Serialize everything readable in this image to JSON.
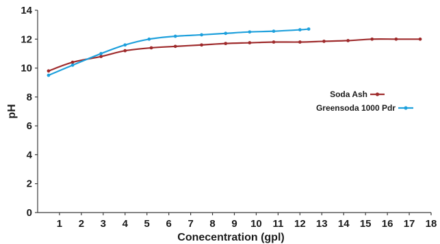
{
  "chart_data": {
    "type": "line",
    "xlabel": "Conecentration (gpl)",
    "ylabel": "pH",
    "xlim": [
      0,
      18
    ],
    "ylim": [
      0,
      14
    ],
    "x_ticks": [
      1,
      2,
      3,
      4,
      5,
      6,
      7,
      8,
      9,
      10,
      11,
      12,
      13,
      14,
      15,
      16,
      17,
      18
    ],
    "y_ticks": [
      0,
      2,
      4,
      6,
      8,
      10,
      12,
      14
    ],
    "grid": false,
    "legend_position": "right",
    "series": [
      {
        "name": "Soda Ash",
        "color": "#9e2a2b",
        "x": [
          0.5,
          1.6,
          2.9,
          4.0,
          5.2,
          6.3,
          7.5,
          8.6,
          9.7,
          10.8,
          12.0,
          13.1,
          14.2,
          15.3,
          16.4,
          17.5
        ],
        "y": [
          9.8,
          10.4,
          10.8,
          11.2,
          11.4,
          11.5,
          11.6,
          11.7,
          11.75,
          11.8,
          11.8,
          11.85,
          11.9,
          12.0,
          12.0,
          12.0
        ]
      },
      {
        "name": "Greensoda 1000 Pdr",
        "color": "#1ea0dc",
        "x": [
          0.5,
          1.6,
          2.9,
          4.0,
          5.1,
          6.3,
          7.5,
          8.6,
          9.7,
          10.8,
          12.0,
          12.4
        ],
        "y": [
          9.5,
          10.2,
          11.0,
          11.6,
          12.0,
          12.2,
          12.3,
          12.4,
          12.5,
          12.55,
          12.65,
          12.7
        ]
      }
    ]
  }
}
